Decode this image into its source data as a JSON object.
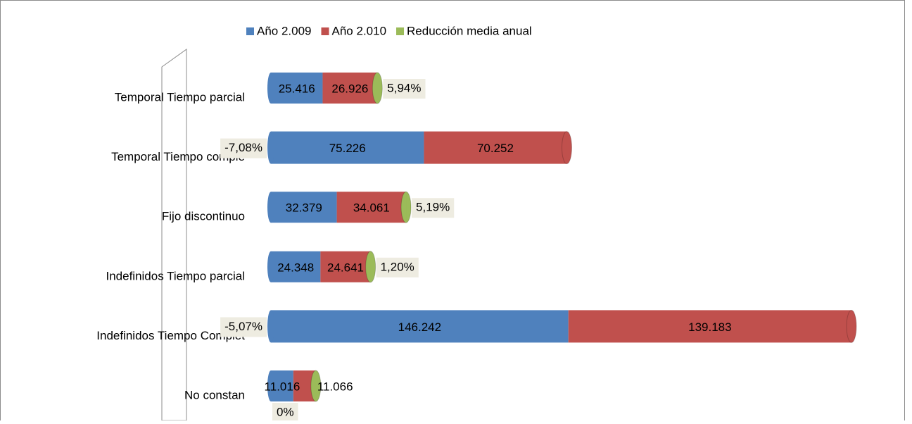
{
  "chart_data": {
    "type": "stacked_bar_horizontal",
    "categories": [
      "Temporal Tiempo parcial",
      "Temporal Tiempo comple",
      "Fijo discontinuo",
      "Indefinidos Tiempo parcial",
      "Indefinidos Tiempo Complet",
      "No constan"
    ],
    "series": [
      {
        "name": "Año 2.009",
        "color": "#4f81bd",
        "values": [
          25416,
          75226,
          32379,
          24348,
          146242,
          11016
        ],
        "value_labels": [
          "25.416",
          "75.226",
          "32.379",
          "24.348",
          "146.242",
          "11.016"
        ]
      },
      {
        "name": "Año 2.010",
        "color": "#c0504d",
        "values": [
          26926,
          70252,
          34061,
          24641,
          139183,
          11066
        ],
        "value_labels": [
          "26.926",
          "70.252",
          "34.061",
          "24.641",
          "139.183",
          "11.066"
        ]
      },
      {
        "name": "Reducción media anual",
        "color": "#9bbb59",
        "values": [
          5.94,
          -7.08,
          5.19,
          1.2,
          -5.07,
          0
        ],
        "value_labels": [
          "5,94%",
          "-7,08%",
          "5,19%",
          "1,20%",
          "-5,07%",
          "0%"
        ]
      }
    ],
    "legend": "top"
  }
}
